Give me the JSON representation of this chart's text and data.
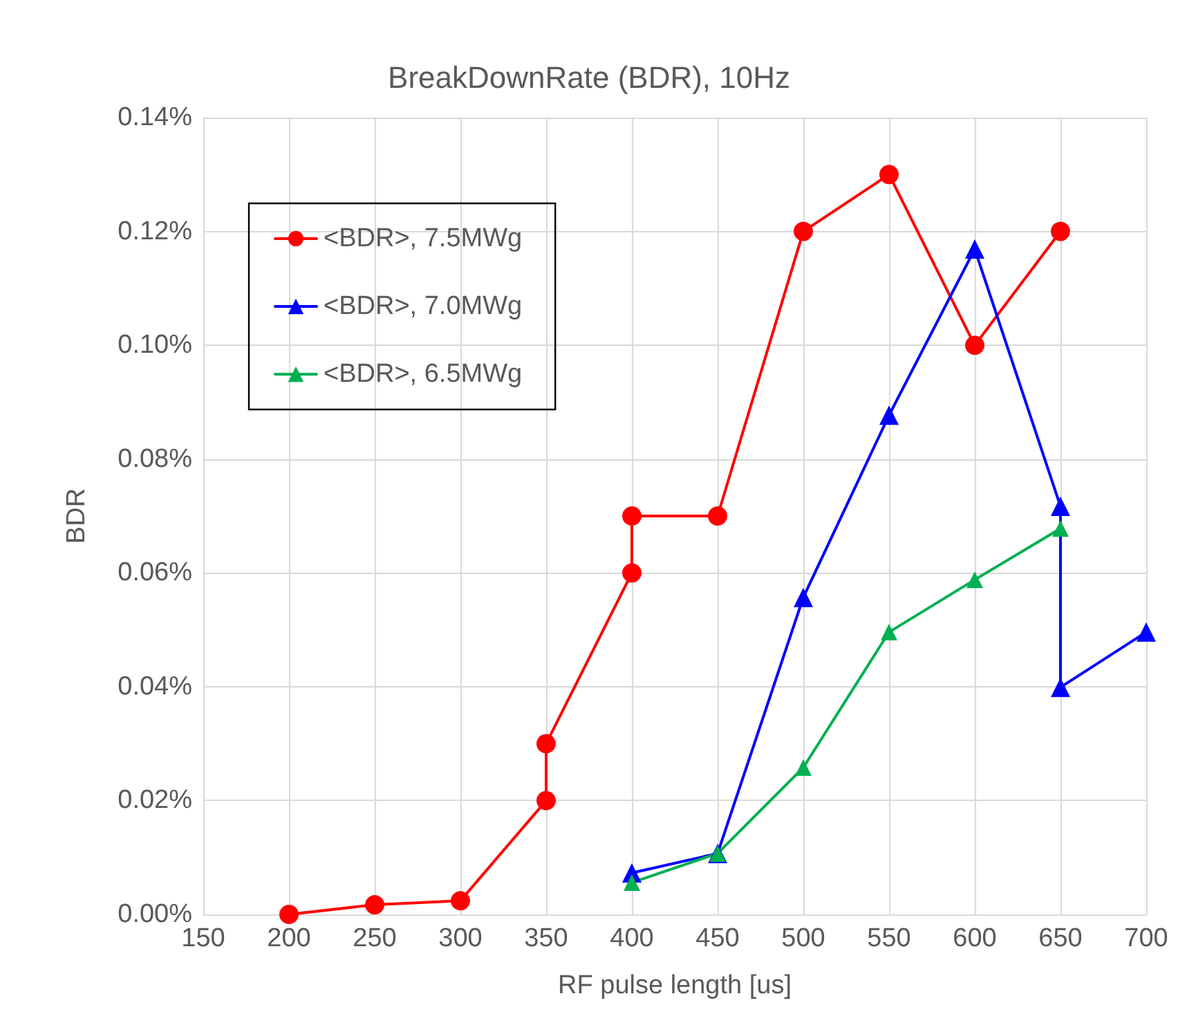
{
  "chart_data": {
    "type": "line",
    "title": "BreakDownRate (BDR), 10Hz",
    "xlabel": "RF pulse length [us]",
    "ylabel": "BDR",
    "xlim": [
      150,
      700
    ],
    "xticks": [
      150,
      200,
      250,
      300,
      350,
      400,
      450,
      500,
      550,
      600,
      650,
      700
    ],
    "ylim": [
      0,
      0.14
    ],
    "yticks": [
      {
        "value": 0,
        "label": "0.00%"
      },
      {
        "value": 0.02,
        "label": "0.02%"
      },
      {
        "value": 0.04,
        "label": "0.04%"
      },
      {
        "value": 0.06,
        "label": "0.06%"
      },
      {
        "value": 0.08,
        "label": "0.08%"
      },
      {
        "value": 0.1,
        "label": "0.10%"
      },
      {
        "value": 0.12,
        "label": "0.12%"
      },
      {
        "value": 0.14,
        "label": "0.14%"
      }
    ],
    "grid": true,
    "legend": "top left",
    "line_style": "solid",
    "series": [
      {
        "name": "<BDR>, 7.5MWg",
        "color": "#ff0000",
        "marker": "circle",
        "x": [
          200,
          250,
          300,
          350,
          350,
          400,
          400,
          450,
          500,
          550,
          600,
          650
        ],
        "values": [
          0,
          0.0017,
          0.0024,
          0.02,
          0.03,
          0.06,
          0.07,
          0.07,
          0.12,
          0.13,
          0.1,
          0.12
        ]
      },
      {
        "name": "<BDR>, 7.0MWg",
        "color": "#0000ff",
        "marker": "triangle",
        "x": [
          400,
          450,
          500,
          550,
          600,
          650,
          650,
          700
        ],
        "values": [
          0.0073,
          0.0107,
          0.0557,
          0.0877,
          0.1169,
          0.0717,
          0.0399,
          0.0496
        ]
      },
      {
        "name": "<BDR>, 6.5MWg",
        "color": "#00b050",
        "marker": "triangle",
        "x": [
          400,
          450,
          500,
          550,
          600,
          650
        ],
        "values": [
          0.0056,
          0.0107,
          0.0258,
          0.0496,
          0.0588,
          0.0678
        ]
      }
    ]
  }
}
